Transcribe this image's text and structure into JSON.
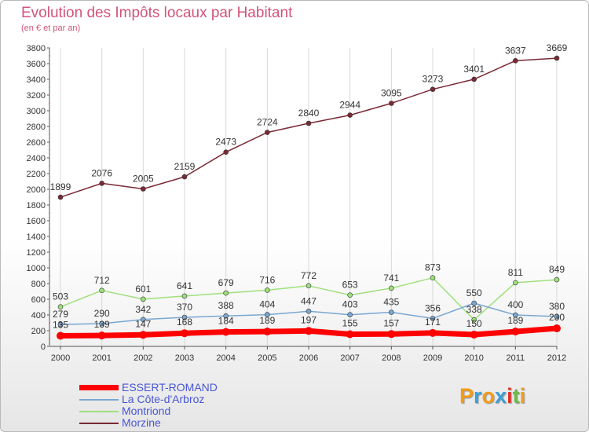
{
  "title": "Evolution des Impôts locaux par Habitant",
  "subtitle": "(en € et par an)",
  "logo": {
    "letters": [
      "P",
      "r",
      "o",
      "x",
      "i",
      "t",
      "i"
    ],
    "colors": [
      "#f39c1a",
      "#3aa0d8",
      "#f39c1a",
      "#3aa0d8",
      "#e0342a",
      "#6fb84a",
      "#f39c1a"
    ]
  },
  "chart_data": {
    "type": "line",
    "title": "Evolution des Impôts locaux par Habitant",
    "subtitle": "(en € et par an)",
    "x": [
      "2000",
      "2001",
      "2002",
      "2003",
      "2004",
      "2005",
      "2006",
      "2007",
      "2008",
      "2009",
      "2010",
      "2011",
      "2012"
    ],
    "ylim": [
      0,
      3800
    ],
    "yticks": [
      0,
      200,
      400,
      600,
      800,
      1000,
      1200,
      1400,
      1600,
      1800,
      2000,
      2200,
      2400,
      2600,
      2800,
      3000,
      3200,
      3400,
      3600,
      3800
    ],
    "grid": "vertical",
    "legend_position": "bottom-left",
    "series": [
      {
        "name": "ESSERT-ROMAND",
        "color": "#ff0000",
        "values": [
          135,
          139,
          147,
          168,
          184,
          189,
          197,
          155,
          157,
          171,
          150,
          189,
          230
        ],
        "labels": [
          "135",
          "139",
          "147",
          "168",
          "184",
          "189",
          "197",
          "155",
          "157",
          "171",
          "150",
          "189",
          "230"
        ]
      },
      {
        "name": "La Côte-d'Arbroz",
        "color": "#7aa7d1",
        "values": [
          279,
          290,
          342,
          370,
          388,
          404,
          447,
          403,
          435,
          356,
          550,
          400,
          380
        ],
        "labels": [
          "279",
          "290",
          "342",
          "370",
          "388",
          "404",
          "447",
          "403",
          "435",
          "356",
          "550",
          "400",
          "380"
        ]
      },
      {
        "name": "Montriond",
        "color": "#9ee07c",
        "values": [
          503,
          712,
          601,
          641,
          679,
          716,
          772,
          653,
          741,
          873,
          338,
          811,
          849
        ],
        "labels": [
          "503",
          "712",
          "601",
          "641",
          "679",
          "716",
          "772",
          "653",
          "741",
          "873",
          "338",
          "811",
          "849"
        ]
      },
      {
        "name": "Morzine",
        "color": "#7a2a35",
        "values": [
          1899,
          2076,
          2005,
          2159,
          2473,
          2724,
          2840,
          2944,
          3095,
          3273,
          3401,
          3637,
          3669
        ],
        "labels": [
          "1899",
          "2076",
          "2005",
          "2159",
          "2473",
          "2724",
          "2840",
          "2944",
          "3095",
          "3273",
          "3401",
          "3637",
          "3669"
        ]
      }
    ]
  }
}
